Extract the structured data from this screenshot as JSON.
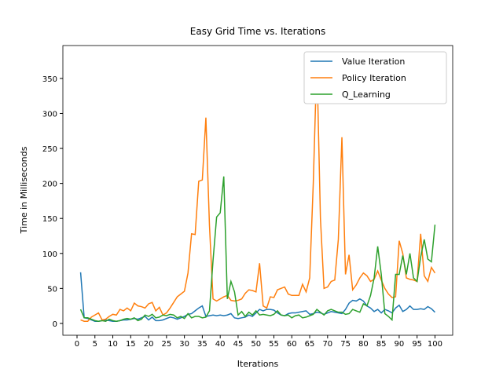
{
  "chart_data": {
    "type": "line",
    "title": "Easy Grid Time vs. Iterations",
    "x_label": "Iterations",
    "y_label": "Time in Milliseconds",
    "x": [
      1,
      2,
      3,
      4,
      5,
      6,
      7,
      8,
      9,
      10,
      11,
      12,
      13,
      14,
      15,
      16,
      17,
      18,
      19,
      20,
      21,
      22,
      23,
      24,
      25,
      26,
      27,
      28,
      29,
      30,
      31,
      32,
      33,
      34,
      35,
      36,
      37,
      38,
      39,
      40,
      41,
      42,
      43,
      44,
      45,
      46,
      47,
      48,
      49,
      50,
      51,
      52,
      53,
      54,
      55,
      56,
      57,
      58,
      59,
      60,
      61,
      62,
      63,
      64,
      65,
      66,
      67,
      68,
      69,
      70,
      71,
      72,
      73,
      74,
      75,
      76,
      77,
      78,
      79,
      80,
      81,
      82,
      83,
      84,
      85,
      86,
      87,
      88,
      89,
      90,
      91,
      92,
      93,
      94,
      95,
      96,
      97,
      98,
      99,
      100
    ],
    "series": [
      {
        "name": "Value Iteration",
        "color": "#1f77b4",
        "values": [
          73,
          8,
          7,
          5,
          3,
          3,
          4,
          5,
          4,
          3,
          3,
          4,
          5,
          5,
          6,
          7,
          6,
          8,
          10,
          5,
          9,
          4,
          4,
          5,
          7,
          9,
          8,
          6,
          8,
          10,
          13,
          14,
          18,
          22,
          25,
          10,
          11,
          12,
          11,
          12,
          11,
          12,
          14,
          8,
          7,
          8,
          9,
          12,
          10,
          15,
          20,
          18,
          20,
          20,
          19,
          15,
          12,
          11,
          14,
          15,
          15,
          16,
          17,
          18,
          13,
          14,
          16,
          15,
          13,
          15,
          17,
          16,
          15,
          14,
          20,
          29,
          33,
          32,
          35,
          32,
          25,
          22,
          17,
          20,
          15,
          20,
          18,
          15,
          22,
          26,
          17,
          20,
          25,
          20,
          20,
          21,
          20,
          24,
          21,
          16
        ]
      },
      {
        "name": "Policy Iteration",
        "color": "#ff7f0e",
        "values": [
          5,
          3,
          3,
          9,
          12,
          15,
          5,
          6,
          10,
          13,
          12,
          20,
          18,
          22,
          18,
          29,
          25,
          24,
          22,
          28,
          30,
          18,
          23,
          12,
          15,
          22,
          30,
          38,
          42,
          46,
          72,
          128,
          127,
          203,
          205,
          294,
          140,
          35,
          32,
          35,
          38,
          40,
          33,
          32,
          33,
          35,
          43,
          48,
          47,
          45,
          86,
          25,
          22,
          38,
          37,
          48,
          50,
          52,
          42,
          40,
          40,
          40,
          56,
          45,
          65,
          200,
          378,
          150,
          50,
          52,
          60,
          62,
          120,
          266,
          70,
          98,
          48,
          55,
          65,
          72,
          68,
          60,
          63,
          75,
          62,
          50,
          42,
          37,
          38,
          118,
          100,
          65,
          63,
          62,
          60,
          128,
          68,
          60,
          80,
          72
        ]
      },
      {
        "name": "Q_Learning",
        "color": "#2ca02c",
        "values": [
          20,
          8,
          8,
          6,
          4,
          3,
          4,
          3,
          6,
          4,
          3,
          4,
          6,
          7,
          6,
          8,
          4,
          6,
          12,
          10,
          13,
          8,
          9,
          12,
          11,
          13,
          12,
          8,
          10,
          7,
          14,
          8,
          10,
          10,
          8,
          9,
          18,
          90,
          152,
          158,
          210,
          35,
          60,
          45,
          12,
          17,
          10,
          16,
          12,
          18,
          12,
          13,
          12,
          11,
          13,
          18,
          12,
          11,
          12,
          8,
          11,
          12,
          8,
          9,
          11,
          13,
          20,
          16,
          12,
          18,
          20,
          18,
          16,
          16,
          13,
          14,
          20,
          18,
          16,
          28,
          25,
          40,
          65,
          110,
          70,
          14,
          10,
          5,
          70,
          70,
          97,
          70,
          100,
          65,
          60,
          95,
          120,
          92,
          88,
          141
        ]
      }
    ],
    "xlim": [
      -3.95,
      104.95
    ],
    "xticks": [
      0,
      5,
      10,
      15,
      20,
      25,
      30,
      35,
      40,
      45,
      50,
      55,
      60,
      65,
      70,
      75,
      80,
      85,
      90,
      95,
      100
    ],
    "ylim": [
      -16.9,
      397
    ],
    "yticks": [
      0,
      50,
      100,
      150,
      200,
      250,
      300,
      350
    ],
    "legend": "upper right"
  }
}
